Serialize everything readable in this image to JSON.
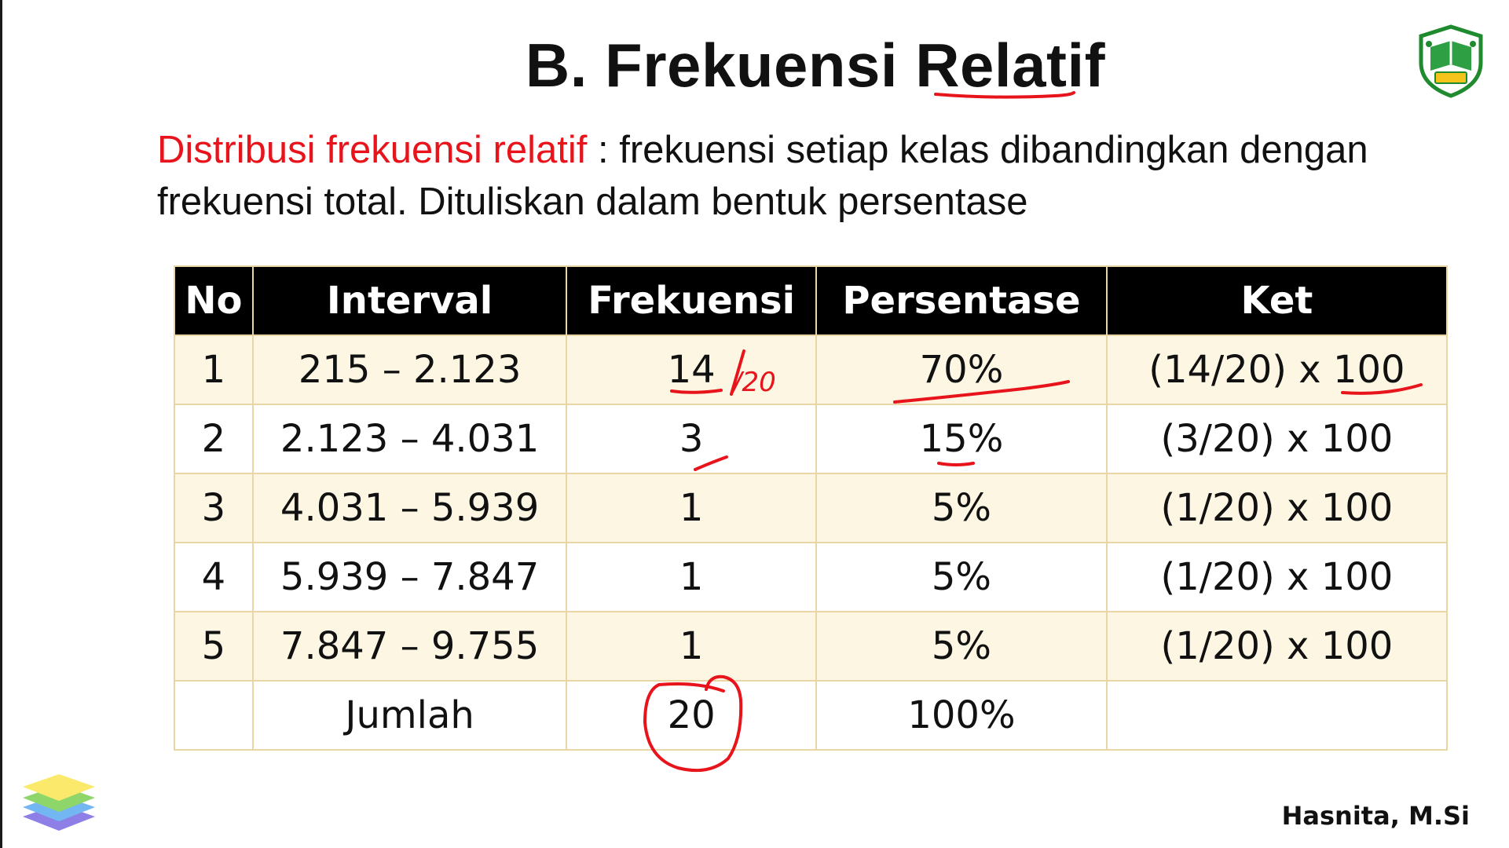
{
  "slide": {
    "title": "B. Frekuensi Relatif",
    "definition": {
      "term": "Distribusi frekuensi relatif",
      "text": " : frekuensi setiap  kelas dibandingkan dengan frekuensi total. Dituliskan dalam bentuk persentase"
    },
    "author": "Hasnita, M.Si",
    "logo_icon": "university-book-shield-icon",
    "stack_icon": "layers-stack-icon"
  },
  "table": {
    "headers": {
      "no": "No",
      "interval": "Interval",
      "frekuensi": "Frekuensi",
      "persentase": "Persentase",
      "ket": "Ket"
    },
    "rows": [
      {
        "no": "1",
        "interval": "215 – 2.123",
        "frekuensi": "14",
        "persentase": "70%",
        "ket": "(14/20) x 100"
      },
      {
        "no": "2",
        "interval": "2.123 – 4.031",
        "frekuensi": "3",
        "persentase": "15%",
        "ket": "(3/20) x 100"
      },
      {
        "no": "3",
        "interval": "4.031 – 5.939",
        "frekuensi": "1",
        "persentase": "5%",
        "ket": "(1/20) x 100"
      },
      {
        "no": "4",
        "interval": "5.939 – 7.847",
        "frekuensi": "1",
        "persentase": "5%",
        "ket": "(1/20) x 100"
      },
      {
        "no": "5",
        "interval": "7.847 – 9.755",
        "frekuensi": "1",
        "persentase": "5%",
        "ket": "(1/20) x 100"
      }
    ],
    "total": {
      "label": "Jumlah",
      "frekuensi": "20",
      "persentase": "100%"
    }
  },
  "annotations": {
    "handwritten_denominator": "/20",
    "ink_color": "#e8141b"
  }
}
